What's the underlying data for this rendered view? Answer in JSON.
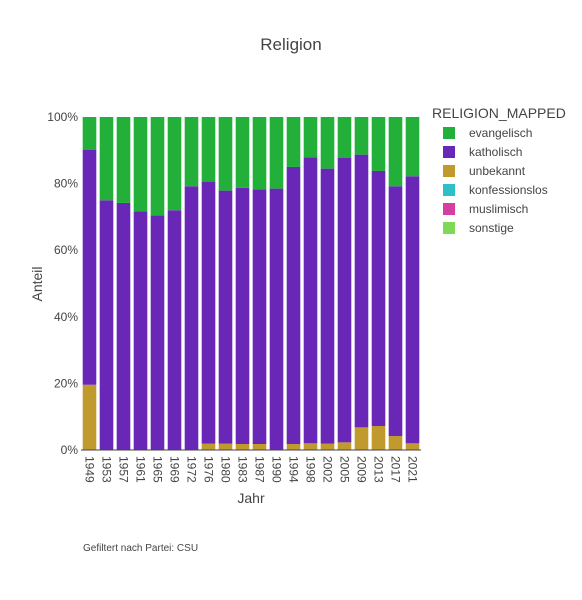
{
  "chart_data": {
    "type": "bar",
    "stacked": "percent",
    "title": "Religion",
    "xlabel": "Jahr",
    "ylabel": "Anteil",
    "ylim": [
      0,
      100
    ],
    "ytick_labels": [
      "0%",
      "20%",
      "40%",
      "60%",
      "80%",
      "100%"
    ],
    "categories": [
      "1949",
      "1953",
      "1957",
      "1961",
      "1965",
      "1969",
      "1972",
      "1976",
      "1980",
      "1983",
      "1987",
      "1990",
      "1994",
      "1998",
      "2002",
      "2005",
      "2009",
      "2013",
      "2017",
      "2021"
    ],
    "legend_title": "RELIGION_MAPPED",
    "legend_position": "right",
    "series": [
      {
        "name": "evangelisch",
        "color": "#22b03a",
        "values": [
          9.8,
          25.0,
          25.8,
          28.3,
          29.6,
          28.0,
          20.8,
          19.4,
          22.1,
          21.3,
          21.7,
          21.5,
          15.0,
          12.1,
          15.5,
          12.2,
          11.3,
          16.2,
          20.8,
          17.8
        ]
      },
      {
        "name": "katholisch",
        "color": "#6927b8",
        "values": [
          70.6,
          75.0,
          74.2,
          71.7,
          70.4,
          72.0,
          79.2,
          78.7,
          76.0,
          76.9,
          76.5,
          78.5,
          83.2,
          85.9,
          82.6,
          85.5,
          81.9,
          76.6,
          75.0,
          80.2
        ]
      },
      {
        "name": "unbekannt",
        "color": "#c19a2e",
        "values": [
          19.6,
          0,
          0,
          0,
          0,
          0,
          0,
          1.9,
          1.9,
          1.8,
          1.8,
          0,
          1.8,
          2.0,
          1.9,
          2.3,
          6.8,
          7.2,
          4.2,
          2.0
        ]
      },
      {
        "name": "konfessionslos",
        "color": "#2fbfc6",
        "values": [
          0,
          0,
          0,
          0,
          0,
          0,
          0,
          0,
          0,
          0,
          0,
          0,
          0,
          0,
          0,
          0,
          0,
          0,
          0,
          0
        ]
      },
      {
        "name": "muslimisch",
        "color": "#d63fa0",
        "values": [
          0,
          0,
          0,
          0,
          0,
          0,
          0,
          0,
          0,
          0,
          0,
          0,
          0,
          0,
          0,
          0,
          0,
          0,
          0,
          0
        ]
      },
      {
        "name": "sonstige",
        "color": "#7ed957",
        "values": [
          0,
          0,
          0,
          0,
          0,
          0,
          0,
          0,
          0,
          0,
          0,
          0,
          0,
          0,
          0,
          0,
          0,
          0,
          0,
          0
        ]
      }
    ],
    "grid": false
  },
  "footnote": "Gefiltert nach Partei: CSU"
}
